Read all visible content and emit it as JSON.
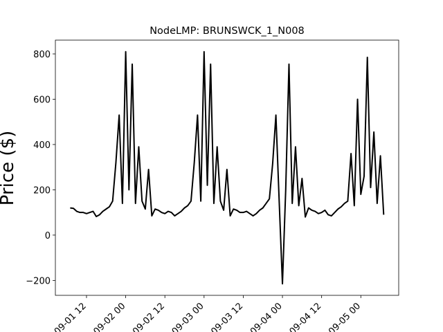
{
  "chart_data": {
    "type": "line",
    "title": "NodeLMP: BRUNSWCK_1_N008",
    "ylabel": "Price ($)",
    "x": [
      "09-01 07",
      "09-01 08",
      "09-01 09",
      "09-01 10",
      "09-01 11",
      "09-01 12",
      "09-01 13",
      "09-01 14",
      "09-01 15",
      "09-01 16",
      "09-01 17",
      "09-01 18",
      "09-01 19",
      "09-01 20",
      "09-01 21",
      "09-01 22",
      "09-01 23",
      "09-02 00",
      "09-02 01",
      "09-02 02",
      "09-02 03",
      "09-02 04",
      "09-02 05",
      "09-02 06",
      "09-02 07",
      "09-02 08",
      "09-02 09",
      "09-02 10",
      "09-02 11",
      "09-02 12",
      "09-02 13",
      "09-02 14",
      "09-02 15",
      "09-02 16",
      "09-02 17",
      "09-02 18",
      "09-02 19",
      "09-02 20",
      "09-02 21",
      "09-02 22",
      "09-02 23",
      "09-03 00",
      "09-03 01",
      "09-03 02",
      "09-03 03",
      "09-03 04",
      "09-03 05",
      "09-03 06",
      "09-03 07",
      "09-03 08",
      "09-03 09",
      "09-03 10",
      "09-03 11",
      "09-03 12",
      "09-03 13",
      "09-03 14",
      "09-03 15",
      "09-03 16",
      "09-03 17",
      "09-03 18",
      "09-03 19",
      "09-03 20",
      "09-03 21",
      "09-03 22",
      "09-03 23",
      "09-04 00",
      "09-04 01",
      "09-04 02",
      "09-04 03",
      "09-04 04",
      "09-04 05",
      "09-04 06",
      "09-04 07",
      "09-04 08",
      "09-04 09",
      "09-04 10",
      "09-04 11",
      "09-04 12",
      "09-04 13",
      "09-04 14",
      "09-04 15",
      "09-04 16",
      "09-04 17",
      "09-04 18",
      "09-04 19",
      "09-04 20",
      "09-04 21",
      "09-04 22",
      "09-04 23",
      "09-05 00",
      "09-05 01",
      "09-05 02",
      "09-05 03",
      "09-05 04",
      "09-05 05",
      "09-05 06",
      "09-05 07"
    ],
    "series": [
      {
        "color": "#000000",
        "values": [
          120,
          118,
          105,
          100,
          100,
          95,
          100,
          105,
          82,
          90,
          105,
          115,
          125,
          150,
          320,
          530,
          140,
          810,
          200,
          755,
          140,
          390,
          150,
          115,
          290,
          85,
          115,
          110,
          100,
          95,
          105,
          100,
          85,
          95,
          105,
          120,
          130,
          150,
          320,
          530,
          150,
          810,
          220,
          755,
          140,
          390,
          150,
          110,
          290,
          85,
          115,
          110,
          100,
          100,
          105,
          95,
          85,
          95,
          110,
          120,
          140,
          160,
          315,
          530,
          150,
          -215,
          200,
          755,
          140,
          390,
          130,
          250,
          80,
          120,
          110,
          105,
          95,
          100,
          110,
          90,
          85,
          100,
          115,
          125,
          140,
          150,
          360,
          130,
          600,
          180,
          260,
          785,
          210,
          455,
          140,
          350,
          90
        ]
      }
    ],
    "xlim": [
      "09-01 02:28",
      "09-05 11:36"
    ],
    "xticks": [
      "09-01 12",
      "09-02 00",
      "09-02 12",
      "09-03 00",
      "09-03 12",
      "09-04 00",
      "09-04 12",
      "09-05 00"
    ],
    "ylim": [
      -266,
      861
    ],
    "yticks": [
      {
        "value": -200,
        "label": "−200"
      },
      0,
      200,
      400,
      600,
      800
    ]
  }
}
